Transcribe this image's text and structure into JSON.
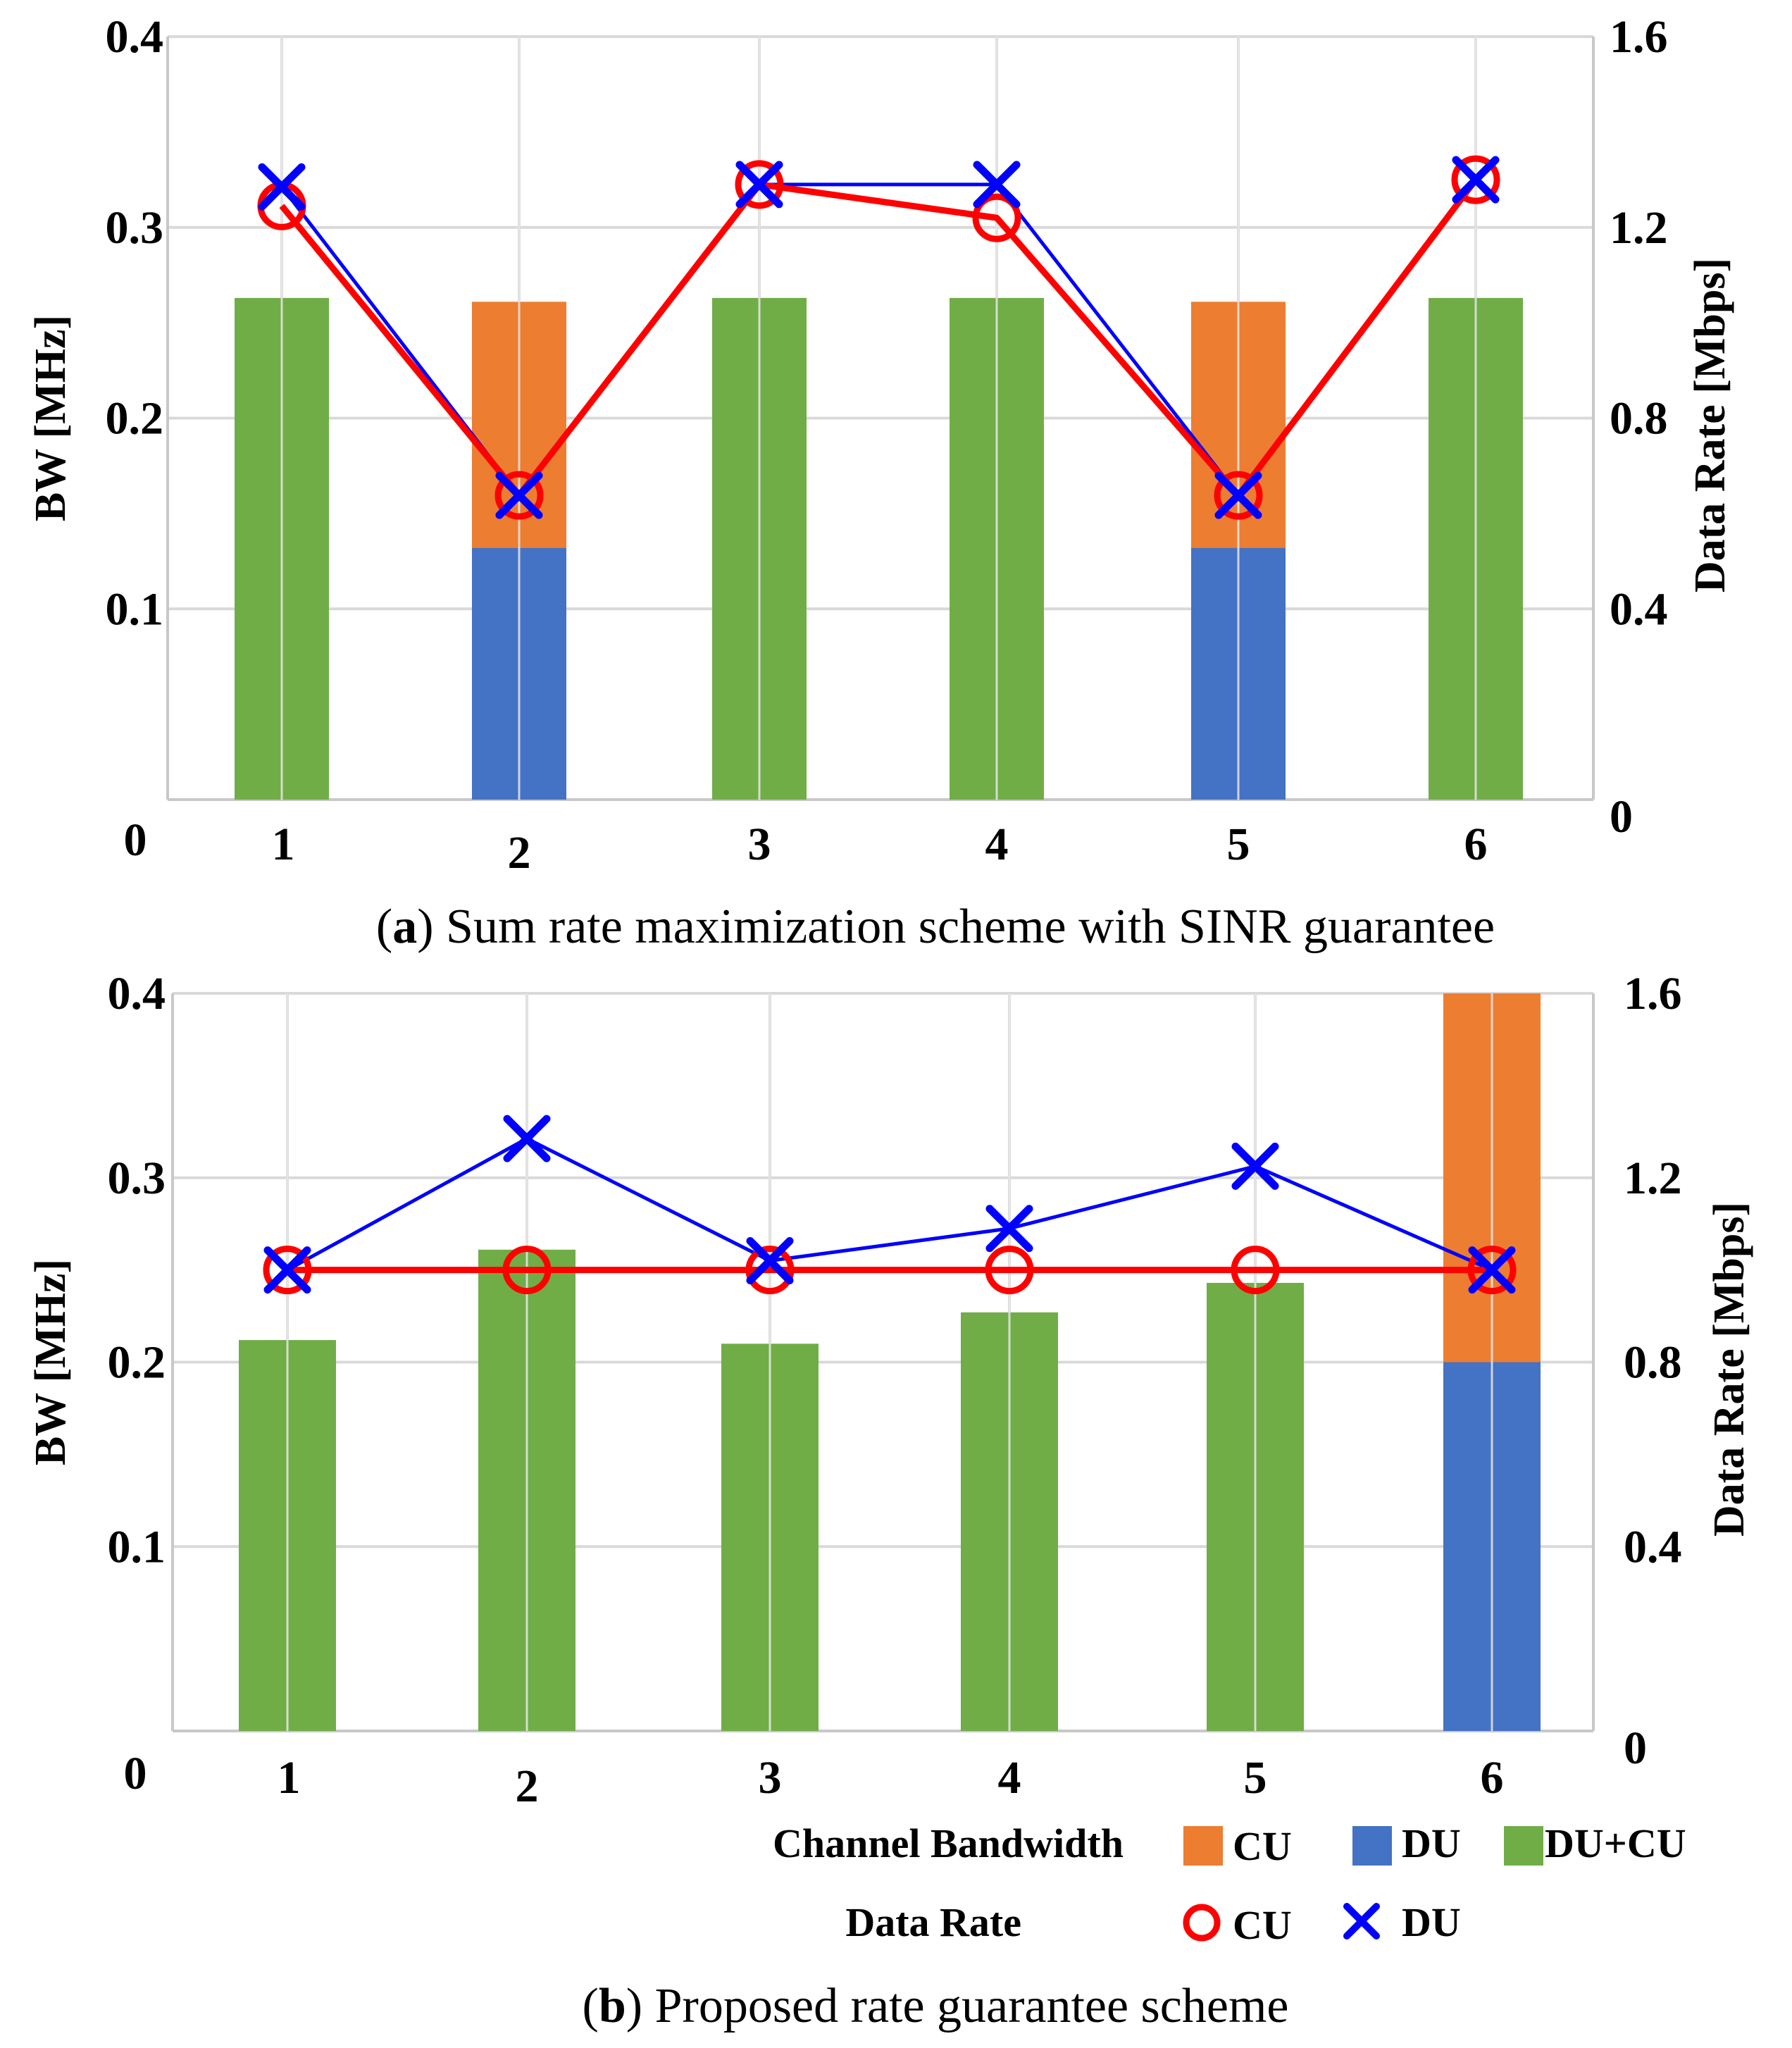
{
  "chart_data": [
    {
      "type": "bar+line",
      "panel": "a",
      "caption_prefix": "(",
      "caption_letter": "a",
      "caption_text": ") Sum rate maximization scheme with SINR guarantee",
      "categories": [
        "1",
        "2",
        "3",
        "4",
        "5",
        "6"
      ],
      "left_axis": {
        "label": "BW [MHz]",
        "range": [
          0,
          0.4
        ],
        "ticks": [
          "0.1",
          "0.2",
          "0.3",
          "0.4"
        ],
        "origin_label": "0"
      },
      "right_axis": {
        "label": "Data Rate [Mbps]",
        "range": [
          0,
          1.6
        ],
        "ticks": [
          "0",
          "0.4",
          "0.8",
          "1.2",
          "1.6"
        ]
      },
      "bars": [
        {
          "name": "DU",
          "color": "#4472C4",
          "values": [
            0,
            0.132,
            0,
            0,
            0.132,
            0
          ]
        },
        {
          "name": "CU",
          "color": "#ED7D31",
          "values": [
            0,
            0.129,
            0,
            0,
            0.129,
            0
          ]
        },
        {
          "name": "DU+CU",
          "color": "#70AD47",
          "values": [
            0.263,
            0,
            0.263,
            0.263,
            0,
            0.263
          ]
        }
      ],
      "lines": [
        {
          "name": "CU",
          "color": "#FF0000",
          "marker": "circle",
          "axis": "right",
          "values": [
            1.245,
            0.638,
            1.29,
            1.22,
            0.638,
            1.3
          ]
        },
        {
          "name": "DU",
          "color": "#0000FF",
          "marker": "x",
          "axis": "right",
          "values": [
            1.285,
            0.638,
            1.29,
            1.29,
            0.638,
            1.3
          ]
        }
      ]
    },
    {
      "type": "bar+line",
      "panel": "b",
      "caption_prefix": "(",
      "caption_letter": "b",
      "caption_text": ") Proposed rate guarantee scheme",
      "categories": [
        "1",
        "2",
        "3",
        "4",
        "5",
        "6"
      ],
      "left_axis": {
        "label": "BW [MHz]",
        "range": [
          0,
          0.4
        ],
        "ticks": [
          "0.1",
          "0.2",
          "0.3",
          "0.4"
        ],
        "origin_label": "0"
      },
      "right_axis": {
        "label": "Data Rate [Mbps]",
        "range": [
          0,
          1.6
        ],
        "ticks": [
          "0",
          "0.4",
          "0.8",
          "1.2",
          "1.6"
        ]
      },
      "bars": [
        {
          "name": "DU",
          "color": "#4472C4",
          "values": [
            0,
            0,
            0,
            0,
            0,
            0.2
          ]
        },
        {
          "name": "CU",
          "color": "#ED7D31",
          "values": [
            0,
            0,
            0,
            0,
            0,
            0.2
          ]
        },
        {
          "name": "DU+CU",
          "color": "#70AD47",
          "values": [
            0.212,
            0.261,
            0.21,
            0.227,
            0.243,
            0
          ]
        }
      ],
      "lines": [
        {
          "name": "CU",
          "color": "#FF0000",
          "marker": "circle",
          "axis": "right",
          "values": [
            1.0,
            1.0,
            1.0,
            1.0,
            1.0,
            1.0
          ]
        },
        {
          "name": "DU",
          "color": "#0000FF",
          "marker": "x",
          "axis": "right",
          "values": [
            1.0,
            1.285,
            1.02,
            1.09,
            1.225,
            1.0
          ]
        }
      ]
    }
  ],
  "legend": {
    "bandwidth_title": "Channel Bandwidth",
    "bandwidth_items": [
      {
        "label": "CU",
        "color": "#ED7D31"
      },
      {
        "label": "DU",
        "color": "#4472C4"
      },
      {
        "label": "DU+CU",
        "color": "#70AD47"
      }
    ],
    "rate_title": "Data Rate",
    "rate_items": [
      {
        "label": "CU",
        "color": "#FF0000",
        "marker": "circle"
      },
      {
        "label": "DU",
        "color": "#0000FF",
        "marker": "x"
      }
    ]
  }
}
